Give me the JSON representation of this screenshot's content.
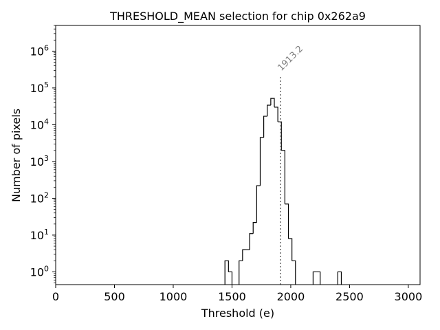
{
  "chart_data": {
    "type": "histogram",
    "title": "THRESHOLD_MEAN selection for chip 0x262a9",
    "xlabel": "Threshold (e)",
    "ylabel": "Number of pixels",
    "xlim": [
      0,
      3100
    ],
    "ylim": [
      0.45,
      5000000
    ],
    "yscale": "log",
    "grid": false,
    "x_ticks": [
      0,
      500,
      1000,
      1500,
      2000,
      2500,
      3000
    ],
    "y_ticks": [
      {
        "value": 1,
        "label": "10",
        "exp": "0"
      },
      {
        "value": 10,
        "label": "10",
        "exp": "1"
      },
      {
        "value": 100,
        "label": "10",
        "exp": "2"
      },
      {
        "value": 1000,
        "label": "10",
        "exp": "3"
      },
      {
        "value": 10000,
        "label": "10",
        "exp": "4"
      },
      {
        "value": 100000,
        "label": "10",
        "exp": "5"
      },
      {
        "value": 1000000,
        "label": "10",
        "exp": "6"
      }
    ],
    "bin_width": 30,
    "bins": [
      {
        "x0": 1440,
        "count": 2
      },
      {
        "x0": 1470,
        "count": 1
      },
      {
        "x0": 1560,
        "count": 2
      },
      {
        "x0": 1590,
        "count": 4
      },
      {
        "x0": 1620,
        "count": 4
      },
      {
        "x0": 1650,
        "count": 11
      },
      {
        "x0": 1680,
        "count": 22
      },
      {
        "x0": 1710,
        "count": 220
      },
      {
        "x0": 1740,
        "count": 4500
      },
      {
        "x0": 1770,
        "count": 17000
      },
      {
        "x0": 1800,
        "count": 34000
      },
      {
        "x0": 1830,
        "count": 52000
      },
      {
        "x0": 1860,
        "count": 30000
      },
      {
        "x0": 1890,
        "count": 12000
      },
      {
        "x0": 1920,
        "count": 2000
      },
      {
        "x0": 1950,
        "count": 70
      },
      {
        "x0": 1980,
        "count": 8
      },
      {
        "x0": 2010,
        "count": 2
      },
      {
        "x0": 2190,
        "count": 1
      },
      {
        "x0": 2220,
        "count": 1
      },
      {
        "x0": 2400,
        "count": 1
      }
    ],
    "mean_marker": {
      "x": 1913.2,
      "label": "1913.2",
      "color": "#7f7f7f",
      "style": "dotted"
    },
    "line_color": "#000000"
  }
}
